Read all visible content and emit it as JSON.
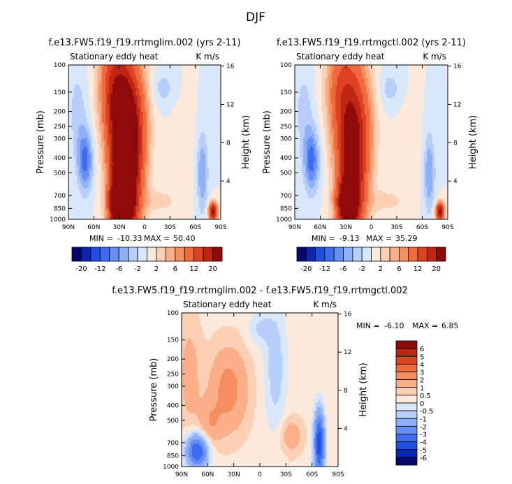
{
  "page_title": "DJF",
  "chart_data": [
    {
      "type": "heatmap",
      "title": "f.e13.FW5.f19_f19.rrtmglim.002 (yrs 2-11)",
      "left_label": "Stationary eddy heat",
      "right_label": "K m/s",
      "xlabel": "",
      "ylabel": "Pressure (mb)",
      "y2label": "Height (km)",
      "x_ticks": [
        "90N",
        "60N",
        "30N",
        "0",
        "30S",
        "60S",
        "90S"
      ],
      "y_ticks": [
        "100",
        "150",
        "200",
        "250",
        "300",
        "400",
        "500",
        "700",
        "850",
        "1000"
      ],
      "y2_ticks": [
        "16",
        "12",
        "8",
        "4"
      ],
      "min_label": "MIN =",
      "min_value": "-10.33",
      "max_label": "MAX =",
      "max_value": "50.40",
      "colorbar_levels": [
        -24,
        -20,
        -16,
        -12,
        -8,
        -6,
        -4,
        -2,
        0,
        2,
        4,
        6,
        8,
        12,
        16,
        20,
        24
      ],
      "colorbar_labels": [
        "-20",
        "-12",
        "-6",
        "-2",
        "2",
        "6",
        "12",
        "20"
      ]
    },
    {
      "type": "heatmap",
      "title": "f.e13.FW5.f19_f19.rrtmgctl.002 (yrs 2-11)",
      "left_label": "Stationary eddy heat",
      "right_label": "K m/s",
      "xlabel": "",
      "ylabel": "Pressure (mb)",
      "y2label": "Height (km)",
      "x_ticks": [
        "90N",
        "60N",
        "30N",
        "0",
        "30S",
        "60S",
        "90S"
      ],
      "y_ticks": [
        "100",
        "150",
        "200",
        "250",
        "300",
        "400",
        "500",
        "700",
        "850",
        "1000"
      ],
      "y2_ticks": [
        "16",
        "12",
        "8",
        "4"
      ],
      "min_label": "MIN =",
      "min_value": "-9.13",
      "max_label": "MAX =",
      "max_value": "35.29",
      "colorbar_levels": [
        -24,
        -20,
        -16,
        -12,
        -8,
        -6,
        -4,
        -2,
        0,
        2,
        4,
        6,
        8,
        12,
        16,
        20,
        24
      ],
      "colorbar_labels": [
        "-20",
        "-12",
        "-6",
        "-2",
        "2",
        "6",
        "12",
        "20"
      ]
    },
    {
      "type": "heatmap",
      "title": "f.e13.FW5.f19_f19.rrtmglim.002 - f.e13.FW5.f19_f19.rrtmgctl.002",
      "left_label": "Stationary eddy heat",
      "right_label": "K m/s",
      "xlabel": "",
      "ylabel": "Pressure (mb)",
      "y2label": "Height (km)",
      "x_ticks": [
        "90N",
        "60N",
        "30N",
        "0",
        "30S",
        "60S",
        "90S"
      ],
      "y_ticks": [
        "100",
        "150",
        "200",
        "250",
        "300",
        "400",
        "500",
        "700",
        "850",
        "1000"
      ],
      "y2_ticks": [
        "16",
        "12",
        "8",
        "4"
      ],
      "min_label": "MIN =",
      "min_value": "-6.10",
      "max_label": "MAX =",
      "max_value": "6.85",
      "colorbar_labels": [
        "6",
        "5",
        "4",
        "3",
        "2",
        "1",
        "0.5",
        "0",
        "-0.5",
        "-1",
        "-2",
        "-3",
        "-4",
        "-5",
        "-6"
      ]
    }
  ],
  "colors": {
    "scale": [
      "#08086b",
      "#0b26b3",
      "#1f4fe0",
      "#3d6cf0",
      "#6690f5",
      "#8fb0f8",
      "#b7cdfa",
      "#d9e7fb",
      "#fbe9dc",
      "#fcd0b4",
      "#fbaf89",
      "#f68f60",
      "#ef6a3c",
      "#dd4322",
      "#c02513",
      "#8e0b0b"
    ],
    "diff_scale": [
      "#8e0b0b",
      "#c02513",
      "#dd4322",
      "#ef6a3c",
      "#f68f60",
      "#fbaf89",
      "#fcd0b4",
      "#fbe9dc",
      "#d9e7fb",
      "#b7cdfa",
      "#8fb0f8",
      "#6690f5",
      "#3d6cf0",
      "#1f4fe0",
      "#0b26b3",
      "#08086b"
    ]
  }
}
